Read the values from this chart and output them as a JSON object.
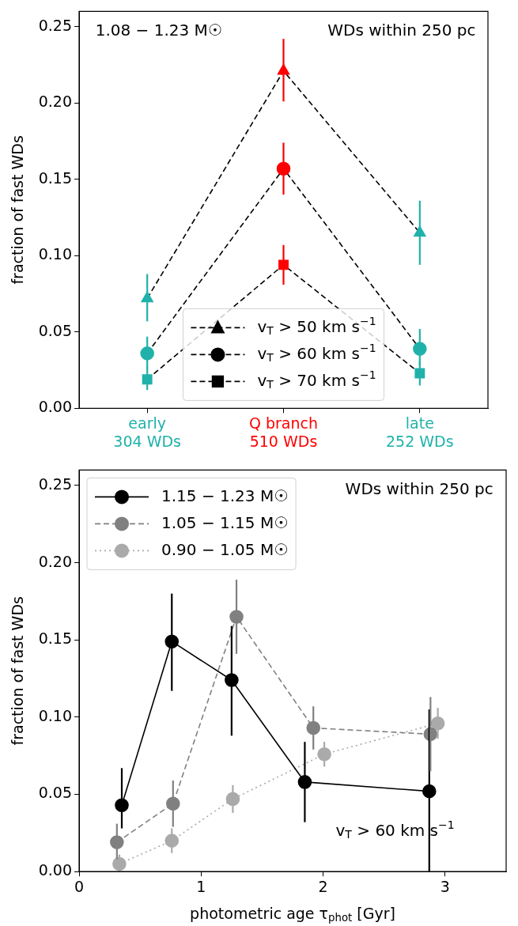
{
  "chart_data": [
    {
      "type": "line",
      "categories": [
        "early\n304 WDs",
        "Q branch\n510 WDs",
        "late\n252 WDs"
      ],
      "ylabel": "fraction of fast WDs",
      "ylim": [
        0,
        0.26
      ],
      "yticks": [
        {
          "value": 0,
          "label": "0.00"
        },
        {
          "value": 0.05,
          "label": "0.05"
        },
        {
          "value": 0.1,
          "label": "0.10"
        },
        {
          "value": 0.15,
          "label": "0.15"
        },
        {
          "value": 0.2,
          "label": "0.20"
        },
        {
          "value": 0.25,
          "label": "0.25"
        }
      ],
      "legend": "bottom",
      "annotations": [
        "1.08 − 1.23 M☉",
        "WDs within 250 pc"
      ],
      "series": [
        {
          "name": "v$_{T}$ > 50 km s$^{−1}$",
          "color": "#000000",
          "colors": [
            "#20b2aa",
            "#ff0000",
            "#20b2aa"
          ],
          "marker": "triangle",
          "line_style": "dashed",
          "values": [
            0.072,
            0.221,
            0.115
          ],
          "errors": [
            [
              0.057,
              0.088
            ],
            [
              0.201,
              0.242
            ],
            [
              0.094,
              0.136
            ]
          ]
        },
        {
          "name": "v$_{T}$ > 60 km s$^{−1}$",
          "color": "#000000",
          "colors": [
            "#20b2aa",
            "#ff0000",
            "#20b2aa"
          ],
          "marker": "circle",
          "line_style": "dashed",
          "values": [
            0.036,
            0.157,
            0.039
          ],
          "errors": [
            [
              0.026,
              0.047
            ],
            [
              0.14,
              0.174
            ],
            [
              0.028,
              0.052
            ]
          ]
        },
        {
          "name": "v$_{T}$ > 70 km s$^{−1}$",
          "color": "#000000",
          "colors": [
            "#20b2aa",
            "#ff0000",
            "#20b2aa"
          ],
          "marker": "square",
          "line_style": "dashed",
          "values": [
            0.019,
            0.094,
            0.023
          ],
          "errors": [
            [
              0.012,
              0.027
            ],
            [
              0.081,
              0.107
            ],
            [
              0.015,
              0.031
            ]
          ]
        }
      ]
    },
    {
      "type": "line",
      "xlabel": "photometric age τ$_{phot}$ [Gyr]",
      "ylabel": "fraction of fast WDs",
      "xlim": [
        0,
        3.5
      ],
      "xticks": [
        0,
        1,
        2,
        3
      ],
      "ylim": [
        0,
        0.26
      ],
      "yticks": [
        {
          "value": 0,
          "label": "0.00"
        },
        {
          "value": 0.05,
          "label": "0.05"
        },
        {
          "value": 0.1,
          "label": "0.10"
        },
        {
          "value": 0.15,
          "label": "0.15"
        },
        {
          "value": 0.2,
          "label": "0.20"
        },
        {
          "value": 0.25,
          "label": "0.25"
        }
      ],
      "legend": "top left",
      "marker": "circle",
      "annotations": [
        "WDs within 250 pc",
        "v$_{T}$ > 60 km s$^{−1}$"
      ],
      "series": [
        {
          "name": "1.15 − 1.23 M☉",
          "color": "#000000",
          "line_style": "solid",
          "x": [
            0.35,
            0.76,
            1.25,
            1.85,
            2.87
          ],
          "values": [
            0.043,
            0.149,
            0.124,
            0.058,
            0.052
          ],
          "errors": [
            [
              0.028,
              0.067
            ],
            [
              0.117,
              0.18
            ],
            [
              0.088,
              0.159
            ],
            [
              0.032,
              0.084
            ],
            [
              0,
              0.105
            ]
          ]
        },
        {
          "name": "1.05 − 1.15 M☉",
          "color": "#808080",
          "line_style": "dashed",
          "x": [
            0.31,
            0.77,
            1.29,
            1.92,
            2.88
          ],
          "values": [
            0.019,
            0.044,
            0.165,
            0.093,
            0.089
          ],
          "errors": [
            [
              0.008,
              0.031
            ],
            [
              0.029,
              0.059
            ],
            [
              0.141,
              0.189
            ],
            [
              0.079,
              0.107
            ],
            [
              0.065,
              0.113
            ]
          ]
        },
        {
          "name": "0.90 − 1.05 M☉",
          "color": "#aaaaaa",
          "line_style": "dotted",
          "x": [
            0.33,
            0.76,
            1.26,
            2.01,
            2.94
          ],
          "values": [
            0.005,
            0.02,
            0.047,
            0.076,
            0.096
          ],
          "errors": [
            [
              0,
              0.011
            ],
            [
              0.012,
              0.028
            ],
            [
              0.038,
              0.056
            ],
            [
              0.068,
              0.084
            ],
            [
              0.086,
              0.106
            ]
          ]
        }
      ]
    }
  ]
}
